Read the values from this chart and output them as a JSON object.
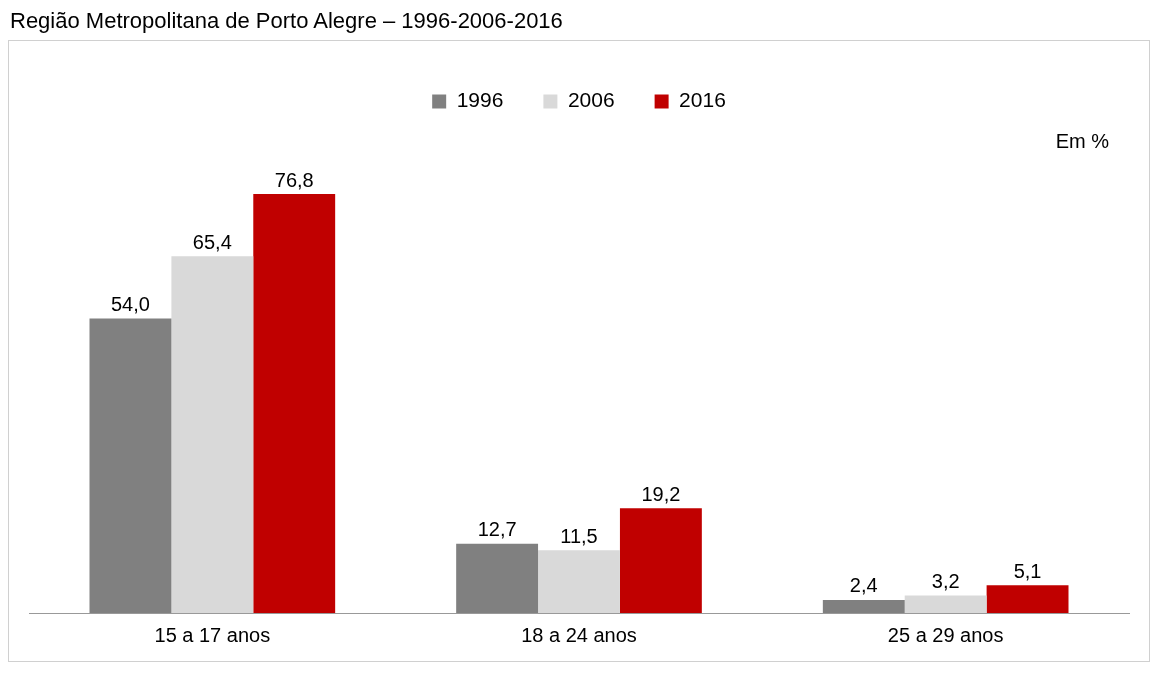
{
  "chart_data": {
    "type": "bar",
    "title": "Região Metropolitana de Porto Alegre – 1996-2006-2016",
    "categories": [
      "15 a 17 anos",
      "18 a 24 anos",
      "25 a 29 anos"
    ],
    "series": [
      {
        "name": "1996",
        "color": "#808080",
        "values": [
          54.0,
          12.7,
          2.4
        ],
        "value_labels": [
          "54,0",
          "12,7",
          "2,4"
        ]
      },
      {
        "name": "2006",
        "color": "#d9d9d9",
        "values": [
          65.4,
          11.5,
          3.2
        ],
        "value_labels": [
          "65,4",
          "11,5",
          "3,2"
        ]
      },
      {
        "name": "2016",
        "color": "#c00000",
        "values": [
          76.8,
          19.2,
          5.1
        ],
        "value_labels": [
          "76,8",
          "19,2",
          "5,1"
        ]
      }
    ],
    "legend": "top",
    "grid": false,
    "annotations": [
      "Em %"
    ]
  }
}
